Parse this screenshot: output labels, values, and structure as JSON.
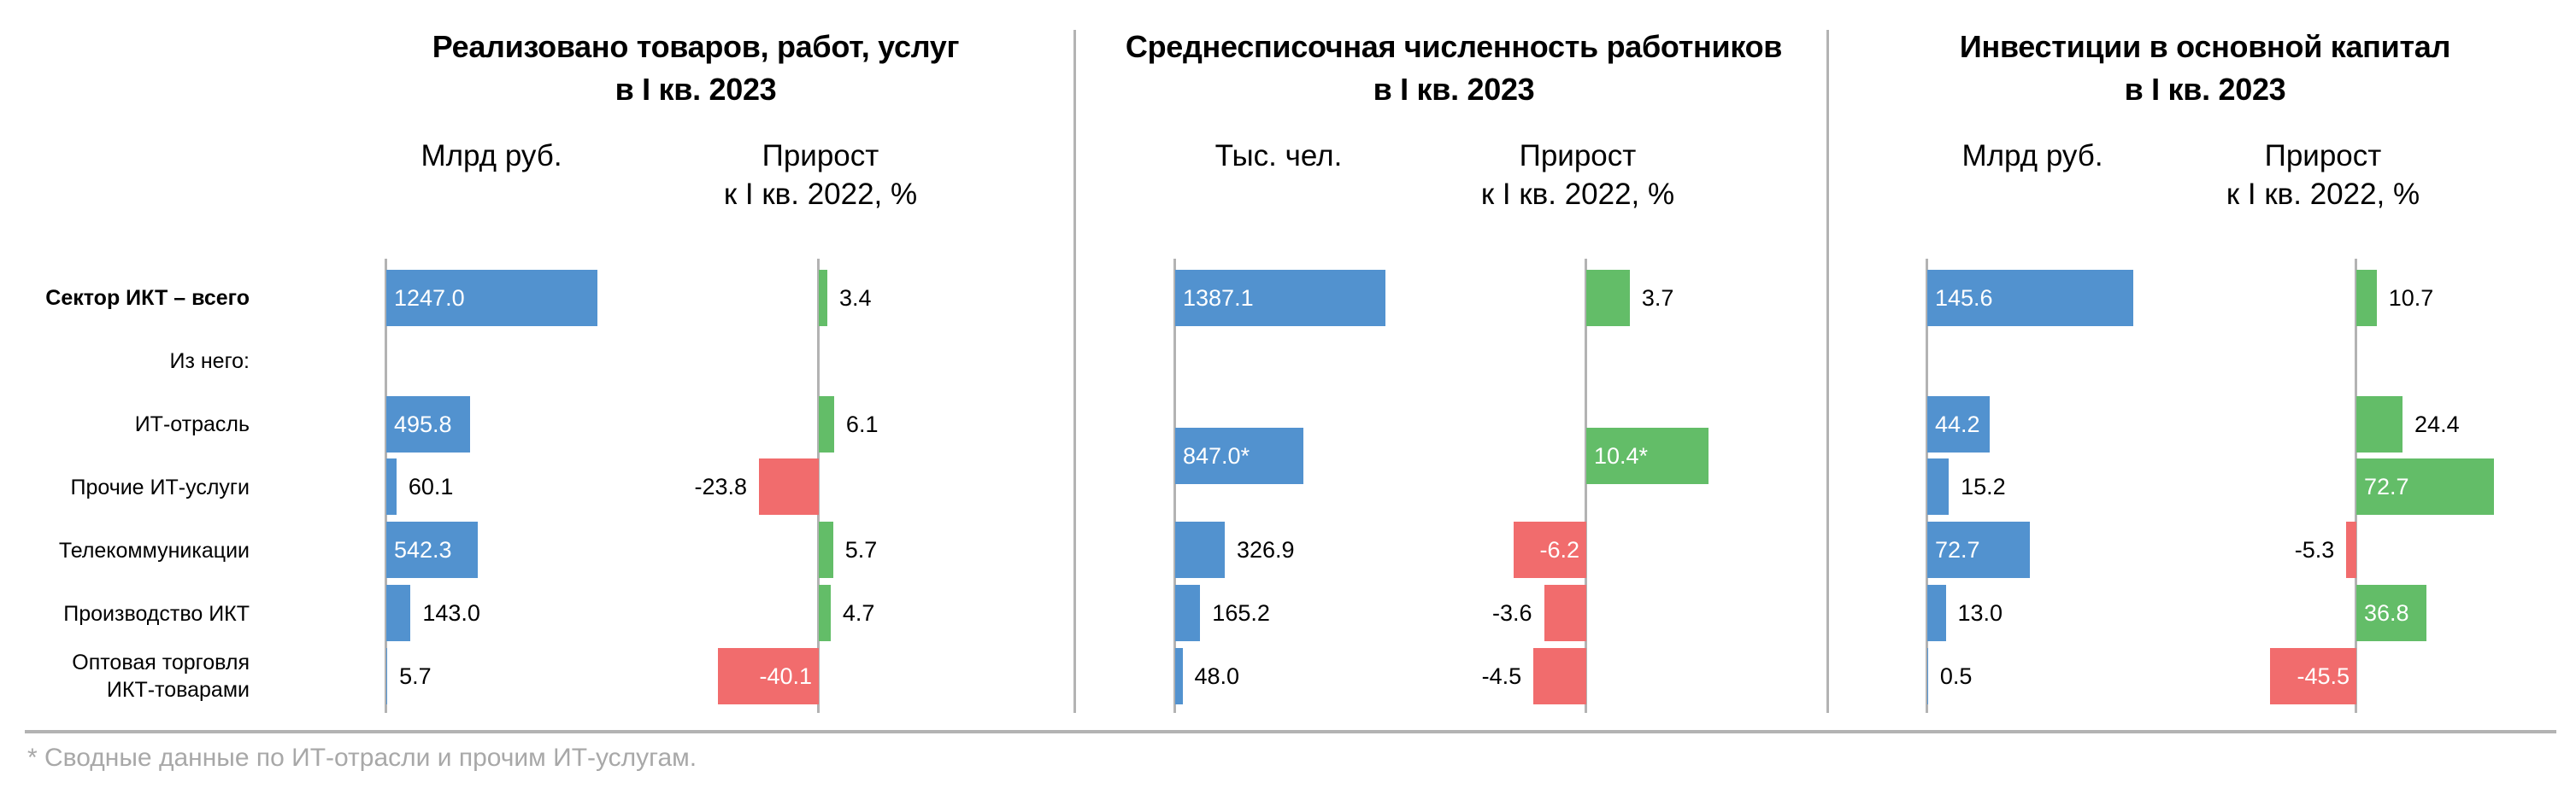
{
  "row_labels": [
    {
      "label": "Сектор ИКТ – всего",
      "bold": true
    },
    {
      "label": "Из него:",
      "bold": false
    },
    {
      "label": "ИТ-отрасль",
      "bold": false
    },
    {
      "label": "Прочие ИТ-услуги",
      "bold": false
    },
    {
      "label": "Телекоммуникации",
      "bold": false
    },
    {
      "label": "Производство ИКТ",
      "bold": false
    },
    {
      "label": "Оптовая торговля\nИКТ-товарами",
      "bold": false
    }
  ],
  "colors": {
    "absolute_bar": "#5292cf",
    "positive_bar": "#63bd68",
    "negative_bar": "#f16c6d",
    "axis": "#b3b3b3",
    "footnote": "#a8a8a8"
  },
  "panels": [
    {
      "title_line1": "Реализовано товаров, работ, услуг",
      "title_line2": "в I кв. 2023",
      "abs_header": "Млрд руб.",
      "pct_header_line1": "Прирост",
      "pct_header_line2": "к I кв. 2022, %"
    },
    {
      "title_line1": "Среднесписочная численность работников",
      "title_line2": "в I кв. 2023",
      "abs_header": "Тыс. чел.",
      "pct_header_line1": "Прирост",
      "pct_header_line2": "к I кв. 2022, %"
    },
    {
      "title_line1": "Инвестиции в основной капитал",
      "title_line2": "в I кв. 2023",
      "abs_header": "Млрд руб.",
      "pct_header_line1": "Прирост",
      "pct_header_line2": "к I кв. 2022, %"
    }
  ],
  "footnote": "* Сводные данные по ИТ-отрасли и прочим ИТ-услугам.",
  "chart_data": [
    {
      "type": "bar",
      "orientation": "horizontal",
      "title": "Реализовано товаров, работ, услуг в I кв. 2023",
      "categories": [
        "Сектор ИКТ – всего",
        "ИТ-отрасль",
        "Прочие ИТ-услуги",
        "Телекоммуникации",
        "Производство ИКТ",
        "Оптовая торговля ИКТ-товарами"
      ],
      "series": [
        {
          "name": "Млрд руб.",
          "values": [
            1247.0,
            495.8,
            60.1,
            542.3,
            143.0,
            5.7
          ],
          "labels": [
            "1247.0",
            "495.8",
            "60.1",
            "542.3",
            "143.0",
            "5.7"
          ]
        },
        {
          "name": "Прирост к I кв. 2022, %",
          "values": [
            3.4,
            6.1,
            -23.8,
            5.7,
            4.7,
            -40.1
          ],
          "labels": [
            "3.4",
            "6.1",
            "-23.8",
            "5.7",
            "4.7",
            "-40.1"
          ]
        }
      ],
      "grid": false
    },
    {
      "type": "bar",
      "orientation": "horizontal",
      "title": "Среднесписочная численность работников в I кв. 2023",
      "categories": [
        "Сектор ИКТ – всего",
        "ИТ-отрасль + Прочие ИТ-услуги*",
        "Телекоммуникации",
        "Производство ИКТ",
        "Оптовая торговля ИКТ-товарами"
      ],
      "series": [
        {
          "name": "Тыс. чел.",
          "values": [
            1387.1,
            847.0,
            326.9,
            165.2,
            48.0
          ],
          "labels": [
            "1387.1",
            "847.0*",
            "326.9",
            "165.2",
            "48.0"
          ]
        },
        {
          "name": "Прирост к I кв. 2022, %",
          "values": [
            3.7,
            10.4,
            -6.2,
            -3.6,
            -4.5
          ],
          "labels": [
            "3.7",
            "10.4*",
            "-6.2",
            "-3.6",
            "-4.5"
          ]
        }
      ],
      "grid": false
    },
    {
      "type": "bar",
      "orientation": "horizontal",
      "title": "Инвестиции в основной капитал в I кв. 2023",
      "categories": [
        "Сектор ИКТ – всего",
        "ИТ-отрасль",
        "Прочие ИТ-услуги",
        "Телекоммуникации",
        "Производство ИКТ",
        "Оптовая торговля ИКТ-товарами"
      ],
      "series": [
        {
          "name": "Млрд руб.",
          "values": [
            145.6,
            44.2,
            15.2,
            72.7,
            13.0,
            0.5
          ],
          "labels": [
            "145.6",
            "44.2",
            "15.2",
            "72.7",
            "13.0",
            "0.5"
          ]
        },
        {
          "name": "Прирост к I кв. 2022, %",
          "values": [
            10.7,
            24.4,
            72.7,
            -5.3,
            36.8,
            -45.5
          ],
          "labels": [
            "10.7",
            "24.4",
            "72.7",
            "-5.3",
            "36.8",
            "-45.5"
          ]
        }
      ],
      "grid": false
    }
  ],
  "bars": [
    {
      "panel": 0,
      "kind": "abs",
      "rows": [
        0
      ],
      "value": 1247.0,
      "label": "1247.0",
      "inside": true
    },
    {
      "panel": 0,
      "kind": "abs",
      "rows": [
        2
      ],
      "value": 495.8,
      "label": "495.8",
      "inside": true
    },
    {
      "panel": 0,
      "kind": "abs",
      "rows": [
        3
      ],
      "value": 60.1,
      "label": "60.1",
      "inside": false
    },
    {
      "panel": 0,
      "kind": "abs",
      "rows": [
        4
      ],
      "value": 542.3,
      "label": "542.3",
      "inside": true
    },
    {
      "panel": 0,
      "kind": "abs",
      "rows": [
        5
      ],
      "value": 143.0,
      "label": "143.0",
      "inside": false
    },
    {
      "panel": 0,
      "kind": "abs",
      "rows": [
        6
      ],
      "value": 5.7,
      "label": "5.7",
      "inside": false
    },
    {
      "panel": 0,
      "kind": "pct",
      "rows": [
        0
      ],
      "value": 3.4,
      "label": "3.4",
      "inside": false
    },
    {
      "panel": 0,
      "kind": "pct",
      "rows": [
        2
      ],
      "value": 6.1,
      "label": "6.1",
      "inside": false
    },
    {
      "panel": 0,
      "kind": "pct",
      "rows": [
        3
      ],
      "value": -23.8,
      "label": "-23.8",
      "inside": false
    },
    {
      "panel": 0,
      "kind": "pct",
      "rows": [
        4
      ],
      "value": 5.7,
      "label": "5.7",
      "inside": false
    },
    {
      "panel": 0,
      "kind": "pct",
      "rows": [
        5
      ],
      "value": 4.7,
      "label": "4.7",
      "inside": false
    },
    {
      "panel": 0,
      "kind": "pct",
      "rows": [
        6
      ],
      "value": -40.1,
      "label": "-40.1",
      "inside": true
    },
    {
      "panel": 1,
      "kind": "abs",
      "rows": [
        0
      ],
      "value": 1387.1,
      "label": "1387.1",
      "inside": true
    },
    {
      "panel": 1,
      "kind": "abs",
      "rows": [
        2,
        3
      ],
      "value": 847.0,
      "label": "847.0*",
      "inside": true
    },
    {
      "panel": 1,
      "kind": "abs",
      "rows": [
        4
      ],
      "value": 326.9,
      "label": "326.9",
      "inside": false
    },
    {
      "panel": 1,
      "kind": "abs",
      "rows": [
        5
      ],
      "value": 165.2,
      "label": "165.2",
      "inside": false
    },
    {
      "panel": 1,
      "kind": "abs",
      "rows": [
        6
      ],
      "value": 48.0,
      "label": "48.0",
      "inside": false
    },
    {
      "panel": 1,
      "kind": "pct",
      "rows": [
        0
      ],
      "value": 3.7,
      "label": "3.7",
      "inside": false
    },
    {
      "panel": 1,
      "kind": "pct",
      "rows": [
        2,
        3
      ],
      "value": 10.4,
      "label": "10.4*",
      "inside": true
    },
    {
      "panel": 1,
      "kind": "pct",
      "rows": [
        4
      ],
      "value": -6.2,
      "label": "-6.2",
      "inside": true
    },
    {
      "panel": 1,
      "kind": "pct",
      "rows": [
        5
      ],
      "value": -3.6,
      "label": "-3.6",
      "inside": false
    },
    {
      "panel": 1,
      "kind": "pct",
      "rows": [
        6
      ],
      "value": -4.5,
      "label": "-4.5",
      "inside": false
    },
    {
      "panel": 2,
      "kind": "abs",
      "rows": [
        0
      ],
      "value": 145.6,
      "label": "145.6",
      "inside": true
    },
    {
      "panel": 2,
      "kind": "abs",
      "rows": [
        2
      ],
      "value": 44.2,
      "label": "44.2",
      "inside": true
    },
    {
      "panel": 2,
      "kind": "abs",
      "rows": [
        3
      ],
      "value": 15.2,
      "label": "15.2",
      "inside": false
    },
    {
      "panel": 2,
      "kind": "abs",
      "rows": [
        4
      ],
      "value": 72.7,
      "label": "72.7",
      "inside": true
    },
    {
      "panel": 2,
      "kind": "abs",
      "rows": [
        5
      ],
      "value": 13.0,
      "label": "13.0",
      "inside": false
    },
    {
      "panel": 2,
      "kind": "abs",
      "rows": [
        6
      ],
      "value": 0.5,
      "label": "0.5",
      "inside": false
    },
    {
      "panel": 2,
      "kind": "pct",
      "rows": [
        0
      ],
      "value": 10.7,
      "label": "10.7",
      "inside": false
    },
    {
      "panel": 2,
      "kind": "pct",
      "rows": [
        2
      ],
      "value": 24.4,
      "label": "24.4",
      "inside": false
    },
    {
      "panel": 2,
      "kind": "pct",
      "rows": [
        3
      ],
      "value": 72.7,
      "label": "72.7",
      "inside": true
    },
    {
      "panel": 2,
      "kind": "pct",
      "rows": [
        4
      ],
      "value": -5.3,
      "label": "-5.3",
      "inside": false
    },
    {
      "panel": 2,
      "kind": "pct",
      "rows": [
        5
      ],
      "value": 36.8,
      "label": "36.8",
      "inside": true
    },
    {
      "panel": 2,
      "kind": "pct",
      "rows": [
        6
      ],
      "value": -45.5,
      "label": "-45.5",
      "inside": true
    }
  ]
}
